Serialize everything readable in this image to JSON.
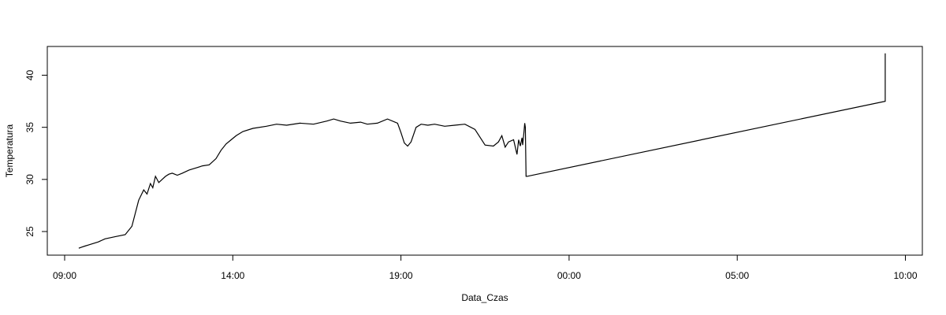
{
  "chart_data": {
    "type": "line",
    "title": "",
    "xlabel": "Data_Czas",
    "ylabel": "Temperatura",
    "x_axis": {
      "type": "time",
      "range_hours": [
        9.0,
        34.0
      ],
      "ticks": [
        {
          "hours": 9,
          "label": "09:00"
        },
        {
          "hours": 14,
          "label": "14:00"
        },
        {
          "hours": 19,
          "label": "19:00"
        },
        {
          "hours": 24,
          "label": "00:00"
        },
        {
          "hours": 29,
          "label": "05:00"
        },
        {
          "hours": 34,
          "label": "10:00"
        }
      ]
    },
    "y_axis": {
      "range": [
        22.5,
        42.5
      ],
      "ticks": [
        {
          "value": 25,
          "label": "25"
        },
        {
          "value": 30,
          "label": "30"
        },
        {
          "value": 35,
          "label": "35"
        },
        {
          "value": 40,
          "label": "40"
        }
      ]
    },
    "grid": false,
    "legend": "none",
    "line_color": "#000000",
    "series": [
      {
        "x": [
          9.42,
          9.5,
          9.6,
          9.7,
          10.0,
          10.2,
          10.5,
          10.8,
          11.0,
          11.2,
          11.35,
          11.45,
          11.55,
          11.62,
          11.7,
          11.8,
          11.9,
          12.0,
          12.1,
          12.2,
          12.35,
          12.5,
          12.7,
          12.9,
          13.1,
          13.3,
          13.5,
          13.65,
          13.8,
          13.95,
          14.1,
          14.3,
          14.6,
          15.0,
          15.3,
          15.6,
          16.0,
          16.4,
          16.8,
          17.0,
          17.2,
          17.5,
          17.8,
          18.0,
          18.3,
          18.6,
          18.9,
          19.0,
          19.1,
          19.2,
          19.3,
          19.45,
          19.6,
          19.8,
          20.0,
          20.3,
          20.6,
          20.9,
          21.2,
          21.5,
          21.75,
          21.9,
          22.0,
          22.1,
          22.2,
          22.35,
          22.45,
          22.5,
          22.55,
          22.6,
          22.62,
          22.66,
          22.68,
          22.7,
          22.72,
          22.73,
          22.75,
          33.4,
          33.4
        ],
        "y": [
          23.4,
          23.5,
          23.6,
          23.7,
          24.0,
          24.3,
          24.5,
          24.7,
          25.5,
          28.0,
          29.0,
          28.6,
          29.6,
          29.2,
          30.3,
          29.7,
          30.0,
          30.3,
          30.5,
          30.6,
          30.4,
          30.6,
          30.9,
          31.1,
          31.3,
          31.4,
          32.0,
          32.8,
          33.4,
          33.8,
          34.2,
          34.6,
          34.9,
          35.1,
          35.3,
          35.2,
          35.4,
          35.3,
          35.6,
          35.8,
          35.6,
          35.4,
          35.5,
          35.3,
          35.4,
          35.8,
          35.4,
          34.5,
          33.5,
          33.2,
          33.6,
          35.0,
          35.3,
          35.2,
          35.3,
          35.1,
          35.2,
          35.3,
          34.8,
          33.3,
          33.2,
          33.6,
          34.2,
          33.1,
          33.6,
          33.8,
          32.4,
          33.8,
          33.2,
          34.0,
          33.3,
          34.6,
          35.4,
          35.0,
          30.3,
          30.3,
          30.3,
          37.5,
          42.1
        ]
      }
    ]
  }
}
